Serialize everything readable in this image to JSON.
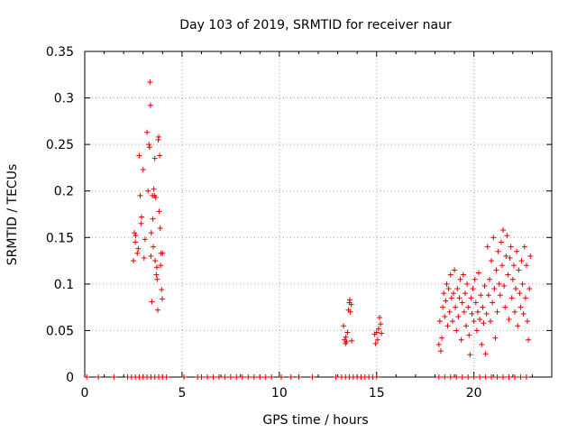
{
  "chart_data": {
    "type": "scatter",
    "title": "Day 103 of 2019, SRMTID for receiver naur",
    "xlabel": "GPS time / hours",
    "ylabel": "SRMTID / TECUs",
    "xlim": [
      0,
      24
    ],
    "ylim": [
      0,
      0.35
    ],
    "x_ticks": [
      0,
      5,
      10,
      15,
      20
    ],
    "x_tick_labels": [
      "0",
      "5",
      "10",
      "15",
      "20"
    ],
    "y_ticks": [
      0,
      0.05,
      0.1,
      0.15,
      0.2,
      0.25,
      0.3,
      0.35
    ],
    "y_tick_labels": [
      "0",
      "0.05",
      "0.1",
      "0.15",
      "0.2",
      "0.25",
      "0.3",
      "0.35"
    ],
    "grid": true,
    "marker": "+",
    "color": "#e00000",
    "series": [
      {
        "name": "SRMTID",
        "points": [
          [
            2.5,
            0.125
          ],
          [
            2.55,
            0.155
          ],
          [
            2.6,
            0.145
          ],
          [
            2.62,
            0.152
          ],
          [
            2.7,
            0.133
          ],
          [
            2.75,
            0.138
          ],
          [
            2.8,
            0.238
          ],
          [
            2.85,
            0.195
          ],
          [
            2.9,
            0.165
          ],
          [
            2.92,
            0.172
          ],
          [
            3.0,
            0.223
          ],
          [
            3.05,
            0.128
          ],
          [
            3.1,
            0.148
          ],
          [
            3.2,
            0.263
          ],
          [
            3.25,
            0.2
          ],
          [
            3.3,
            0.25
          ],
          [
            3.33,
            0.247
          ],
          [
            3.35,
            0.317
          ],
          [
            3.38,
            0.292
          ],
          [
            3.4,
            0.13
          ],
          [
            3.42,
            0.155
          ],
          [
            3.45,
            0.081
          ],
          [
            3.48,
            0.195
          ],
          [
            3.5,
            0.17
          ],
          [
            3.52,
            0.14
          ],
          [
            3.55,
            0.202
          ],
          [
            3.58,
            0.195
          ],
          [
            3.6,
            0.235
          ],
          [
            3.62,
            0.125
          ],
          [
            3.65,
            0.193
          ],
          [
            3.68,
            0.11
          ],
          [
            3.7,
            0.118
          ],
          [
            3.72,
            0.105
          ],
          [
            3.75,
            0.072
          ],
          [
            3.78,
            0.255
          ],
          [
            3.8,
            0.258
          ],
          [
            3.82,
            0.178
          ],
          [
            3.85,
            0.238
          ],
          [
            3.88,
            0.16
          ],
          [
            3.9,
            0.12
          ],
          [
            3.92,
            0.133
          ],
          [
            3.95,
            0.094
          ],
          [
            3.98,
            0.084
          ],
          [
            4.0,
            0.133
          ],
          [
            13.3,
            0.055
          ],
          [
            13.35,
            0.04
          ],
          [
            13.4,
            0.036
          ],
          [
            13.42,
            0.043
          ],
          [
            13.45,
            0.038
          ],
          [
            13.5,
            0.048
          ],
          [
            13.55,
            0.072
          ],
          [
            13.6,
            0.08
          ],
          [
            13.62,
            0.083
          ],
          [
            13.65,
            0.07
          ],
          [
            13.7,
            0.078
          ],
          [
            13.72,
            0.039
          ],
          [
            14.9,
            0.046
          ],
          [
            14.95,
            0.036
          ],
          [
            15.0,
            0.048
          ],
          [
            15.05,
            0.04
          ],
          [
            15.1,
            0.052
          ],
          [
            15.15,
            0.064
          ],
          [
            15.2,
            0.057
          ],
          [
            15.25,
            0.047
          ],
          [
            18.2,
            0.035
          ],
          [
            18.25,
            0.06
          ],
          [
            18.3,
            0.028
          ],
          [
            18.35,
            0.042
          ],
          [
            18.4,
            0.075
          ],
          [
            18.45,
            0.09
          ],
          [
            18.5,
            0.065
          ],
          [
            18.55,
            0.082
          ],
          [
            18.6,
            0.1
          ],
          [
            18.65,
            0.055
          ],
          [
            18.7,
            0.095
          ],
          [
            18.75,
            0.07
          ],
          [
            18.8,
            0.11
          ],
          [
            18.85,
            0.085
          ],
          [
            18.9,
            0.06
          ],
          [
            18.95,
            0.09
          ],
          [
            19.0,
            0.115
          ],
          [
            19.05,
            0.075
          ],
          [
            19.1,
            0.05
          ],
          [
            19.15,
            0.095
          ],
          [
            19.2,
            0.065
          ],
          [
            19.25,
            0.085
          ],
          [
            19.3,
            0.105
          ],
          [
            19.35,
            0.04
          ],
          [
            19.4,
            0.08
          ],
          [
            19.45,
            0.11
          ],
          [
            19.5,
            0.07
          ],
          [
            19.55,
            0.09
          ],
          [
            19.6,
            0.055
          ],
          [
            19.65,
            0.1
          ],
          [
            19.7,
            0.075
          ],
          [
            19.75,
            0.045
          ],
          [
            19.8,
            0.024
          ],
          [
            19.85,
            0.085
          ],
          [
            19.9,
            0.068
          ],
          [
            19.95,
            0.095
          ],
          [
            20.0,
            0.06
          ],
          [
            20.05,
            0.105
          ],
          [
            20.1,
            0.08
          ],
          [
            20.15,
            0.05
          ],
          [
            20.2,
            0.07
          ],
          [
            20.25,
            0.112
          ],
          [
            20.3,
            0.062
          ],
          [
            20.35,
            0.088
          ],
          [
            20.4,
            0.035
          ],
          [
            20.45,
            0.075
          ],
          [
            20.5,
            0.058
          ],
          [
            20.55,
            0.098
          ],
          [
            20.6,
            0.025
          ],
          [
            20.65,
            0.068
          ],
          [
            20.7,
            0.14
          ],
          [
            20.75,
            0.088
          ],
          [
            20.8,
            0.105
          ],
          [
            20.85,
            0.06
          ],
          [
            20.9,
            0.125
          ],
          [
            20.95,
            0.08
          ],
          [
            21.0,
            0.15
          ],
          [
            21.05,
            0.095
          ],
          [
            21.1,
            0.042
          ],
          [
            21.15,
            0.115
          ],
          [
            21.2,
            0.07
          ],
          [
            21.25,
            0.135
          ],
          [
            21.3,
            0.1
          ],
          [
            21.35,
            0.088
          ],
          [
            21.4,
            0.145
          ],
          [
            21.45,
            0.12
          ],
          [
            21.5,
            0.158
          ],
          [
            21.55,
            0.098
          ],
          [
            21.6,
            0.075
          ],
          [
            21.65,
            0.13
          ],
          [
            21.7,
            0.152
          ],
          [
            21.75,
            0.11
          ],
          [
            21.8,
            0.062
          ],
          [
            21.85,
            0.128
          ],
          [
            21.9,
            0.14
          ],
          [
            21.95,
            0.085
          ],
          [
            22.0,
            0.105
          ],
          [
            22.05,
            0.12
          ],
          [
            22.1,
            0.07
          ],
          [
            22.15,
            0.095
          ],
          [
            22.2,
            0.135
          ],
          [
            22.25,
            0.055
          ],
          [
            22.3,
            0.115
          ],
          [
            22.35,
            0.09
          ],
          [
            22.4,
            0.075
          ],
          [
            22.45,
            0.125
          ],
          [
            22.5,
            0.1
          ],
          [
            22.55,
            0.068
          ],
          [
            22.6,
            0.14
          ],
          [
            22.65,
            0.085
          ],
          [
            22.7,
            0.12
          ],
          [
            22.75,
            0.06
          ],
          [
            22.8,
            0.04
          ],
          [
            22.85,
            0.095
          ],
          [
            22.9,
            0.13
          ]
        ]
      }
    ],
    "zero_markers_x": [
      0.1,
      0.7,
      1.5,
      2.2,
      2.4,
      2.6,
      2.8,
      3.0,
      3.2,
      3.4,
      3.6,
      3.8,
      4.0,
      4.2,
      5.1,
      5.8,
      6.0,
      6.3,
      6.6,
      6.9,
      7.2,
      7.5,
      7.8,
      8.1,
      8.4,
      8.7,
      9.0,
      9.3,
      9.6,
      10.1,
      10.6,
      11.0,
      11.7,
      12.9,
      13.2,
      13.4,
      13.6,
      13.8,
      14.0,
      14.2,
      14.4,
      14.6,
      14.8,
      15.0,
      18.2,
      18.5,
      18.8,
      19.1,
      19.4,
      19.7,
      20.0,
      20.3,
      20.6,
      20.9,
      21.2,
      21.5,
      21.8,
      22.1,
      22.4,
      22.7
    ]
  }
}
